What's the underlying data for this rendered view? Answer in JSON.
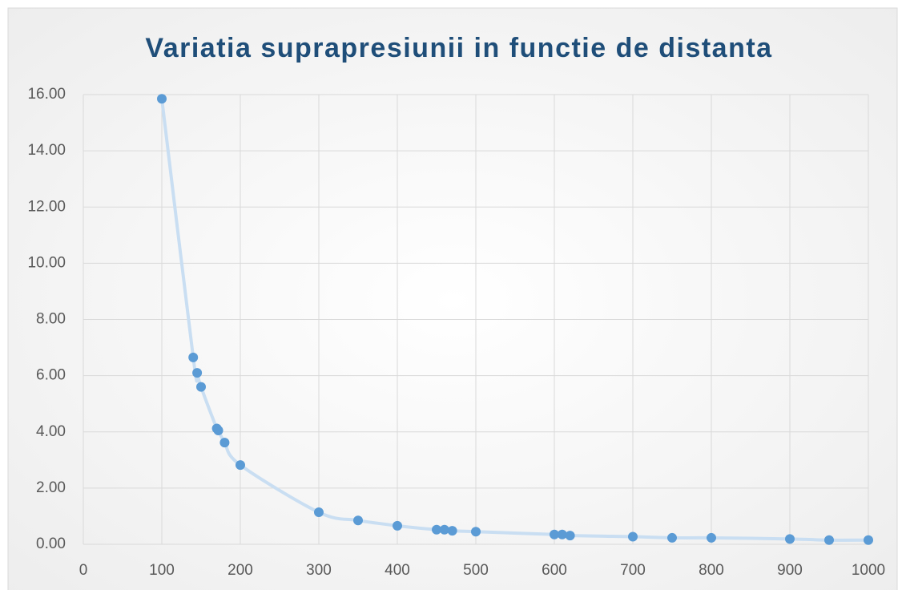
{
  "chart_data": {
    "type": "scatter",
    "title": "Variatia suprapresiunii in functie de distanta",
    "x": [
      100,
      140,
      145,
      150,
      170,
      172,
      180,
      200,
      300,
      350,
      400,
      450,
      460,
      470,
      500,
      600,
      610,
      620,
      700,
      750,
      800,
      900,
      950,
      1000
    ],
    "values": [
      15.85,
      6.65,
      6.1,
      5.6,
      4.12,
      4.05,
      3.62,
      2.82,
      1.14,
      0.85,
      0.66,
      0.52,
      0.52,
      0.48,
      0.45,
      0.35,
      0.35,
      0.31,
      0.27,
      0.23,
      0.23,
      0.19,
      0.15,
      0.15
    ],
    "color": "#5b9bd5",
    "line_color": "#c9def2",
    "smooth_line": true,
    "xlim": [
      0,
      1000
    ],
    "xticks": [
      0,
      100,
      200,
      300,
      400,
      500,
      600,
      700,
      800,
      900,
      1000
    ],
    "ylim": [
      0,
      16
    ],
    "yticks": [
      {
        "value": 0,
        "label": "0.00"
      },
      {
        "value": 2,
        "label": "2.00"
      },
      {
        "value": 4,
        "label": "4.00"
      },
      {
        "value": 6,
        "label": "6.00"
      },
      {
        "value": 8,
        "label": "8.00"
      },
      {
        "value": 10,
        "label": "10.00"
      },
      {
        "value": 12,
        "label": "12.00"
      },
      {
        "value": 14,
        "label": "14.00"
      },
      {
        "value": 16,
        "label": "16.00"
      }
    ],
    "grid": true
  }
}
